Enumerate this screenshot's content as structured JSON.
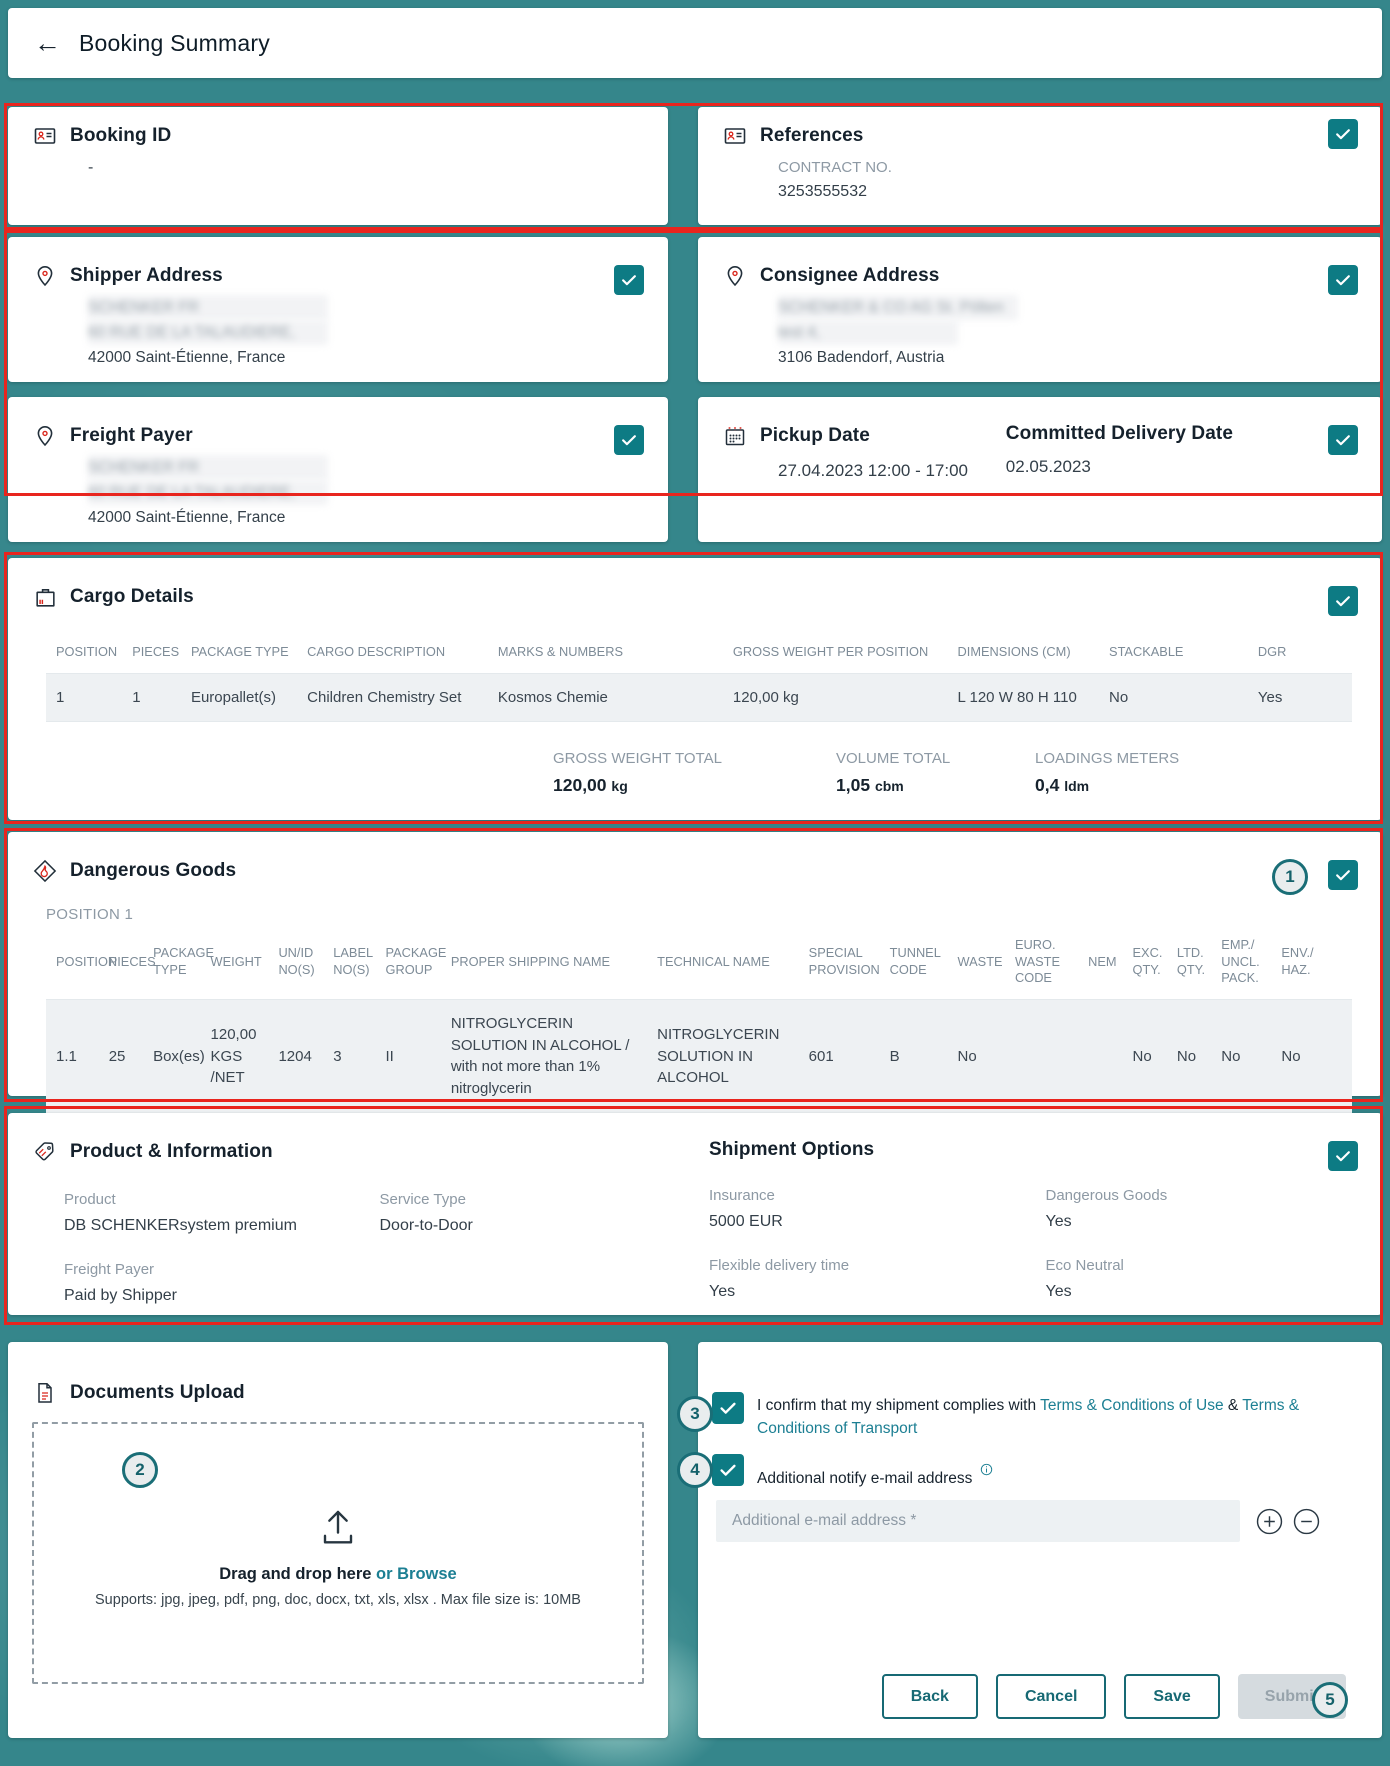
{
  "header": {
    "title": "Booking Summary"
  },
  "cards": {
    "booking_id": {
      "title": "Booking ID",
      "value": "-"
    },
    "references": {
      "title": "References",
      "label": "CONTRACT NO.",
      "value": "3253555532"
    },
    "shipper": {
      "title": "Shipper Address",
      "redacted_lines": [
        "SCHENKER FR",
        "60 RUE DE LA TALAUDIERE,"
      ],
      "visible_line": "42000 Saint-Étienne, France"
    },
    "consignee": {
      "title": "Consignee Address",
      "redacted_lines": [
        "SCHENKER & CO AG St. Pölten",
        "test 4,"
      ],
      "visible_line": "3106 Badendorf, Austria"
    },
    "freight_payer_card": {
      "title": "Freight Payer",
      "redacted_lines": [
        "SCHENKER FR",
        "60 RUE DE LA TALAUDIERE,"
      ],
      "visible_line": "42000 Saint-Étienne, France"
    },
    "pickup": {
      "title": "Pickup Date",
      "value": "27.04.2023 12:00 - 17:00",
      "committed_title": "Committed Delivery Date",
      "committed_value": "02.05.2023"
    },
    "cargo_details": {
      "title": "Cargo Details",
      "table": {
        "headers": [
          "POSITION",
          "PIECES",
          "PACKAGE TYPE",
          "CARGO DESCRIPTION",
          "MARKS & NUMBERS",
          "GROSS WEIGHT PER POSITION",
          "DIMENSIONS (CM)",
          "STACKABLE",
          "DGR"
        ],
        "col_widths": [
          "6.6%",
          "4.5%",
          "8.9%",
          "14.6%",
          "18%",
          "17.2%",
          "11.6%",
          "11.4%",
          "7.2%"
        ],
        "rows": [
          [
            "1",
            "1",
            "Europallet(s)",
            "Children Chemistry Set",
            "Kosmos Chemie",
            "120,00 kg",
            "L 120 W 80 H 110",
            "No",
            "Yes"
          ]
        ]
      },
      "totals": [
        {
          "label": "GROSS WEIGHT TOTAL",
          "value": "120,00",
          "unit": "kg"
        },
        {
          "label": "VOLUME TOTAL",
          "value": "1,05",
          "unit": "cbm"
        },
        {
          "label": "LOADINGS METERS",
          "value": "0,4",
          "unit": "ldm"
        }
      ]
    },
    "dangerous_goods": {
      "title": "Dangerous Goods",
      "position_label": "POSITION 1",
      "table": {
        "headers": [
          "POSITION",
          "PIECES",
          "PACKAGE TYPE",
          "WEIGHT",
          "UN/ID NO(S)",
          "LABEL NO(S)",
          "PACKAGE GROUP",
          "PROPER SHIPPING NAME",
          "TECHNICAL NAME",
          "SPECIAL PROVISION",
          "TUNNEL CODE",
          "WASTE",
          "EURO. WASTE CODE",
          "NEM",
          "EXC. QTY.",
          "LTD. QTY.",
          "EMP./ UNCL. PACK.",
          "ENV./ HAZ."
        ],
        "col_widths": [
          "4.8%",
          "3.4%",
          "4.4%",
          "5.2%",
          "4.2%",
          "4%",
          "5%",
          "15.8%",
          "11.6%",
          "6.2%",
          "5.2%",
          "4.4%",
          "5.6%",
          "3.4%",
          "3.4%",
          "3.4%",
          "4.6%",
          "5.4%"
        ],
        "rows": [
          [
            "1.1",
            "25",
            "Box(es)",
            "120,00 KGS /NET",
            "1204",
            "3",
            "II",
            "NITROGLYCERIN SOLUTION IN ALCOHOL / with not more than 1% nitroglycerin",
            "NITROGLYCERIN SOLUTION IN ALCOHOL",
            "601",
            "B",
            "No",
            "",
            "",
            "No",
            "No",
            "No",
            "No"
          ]
        ]
      }
    },
    "product_information": {
      "title": "Product & Information",
      "product": {
        "label": "Product",
        "value": "DB SCHENKERsystem premium"
      },
      "service_type": {
        "label": "Service Type",
        "value": "Door-to-Door"
      },
      "freight_payer": {
        "label": "Freight Payer",
        "value": "Paid by Shipper"
      },
      "shipment_options": {
        "title": "Shipment Options",
        "insurance": {
          "label": "Insurance",
          "value": "5000 EUR"
        },
        "dangerous_goods": {
          "label": "Dangerous Goods",
          "value": "Yes"
        },
        "flexible_delivery": {
          "label": "Flexible delivery time",
          "value": "Yes"
        },
        "eco_neutral": {
          "label": "Eco Neutral",
          "value": "Yes"
        }
      }
    },
    "documents_upload": {
      "title": "Documents Upload",
      "drag_text": "Drag and drop here",
      "browse_text": "or Browse",
      "supports_text": "Supports: jpg, jpeg, pdf, png, doc, docx, txt, xls, xlsx . Max file size is: 10MB"
    },
    "confirmation": {
      "terms": {
        "prefix": "I confirm that my shipment complies with ",
        "link1": "Terms & Conditions of Use",
        "middle": " & ",
        "link2": "Terms & Conditions of Transport"
      },
      "notify_label": "Additional notify e-mail address",
      "email_placeholder": "Additional e-mail address *",
      "buttons": {
        "back": "Back",
        "cancel": "Cancel",
        "save": "Save",
        "submit": "Submit"
      }
    }
  },
  "annotations": {
    "steps": [
      "1",
      "2",
      "3",
      "4",
      "5"
    ]
  },
  "colors": {
    "background_teal": "#35868b",
    "checkbox_teal": "#0d7b84",
    "link_teal": "#1c7f93",
    "button_teal": "#176974",
    "annotation_red": "#e8251e",
    "icon_accent_red": "#d9261c",
    "table_row_bg": "#eef1f3"
  }
}
